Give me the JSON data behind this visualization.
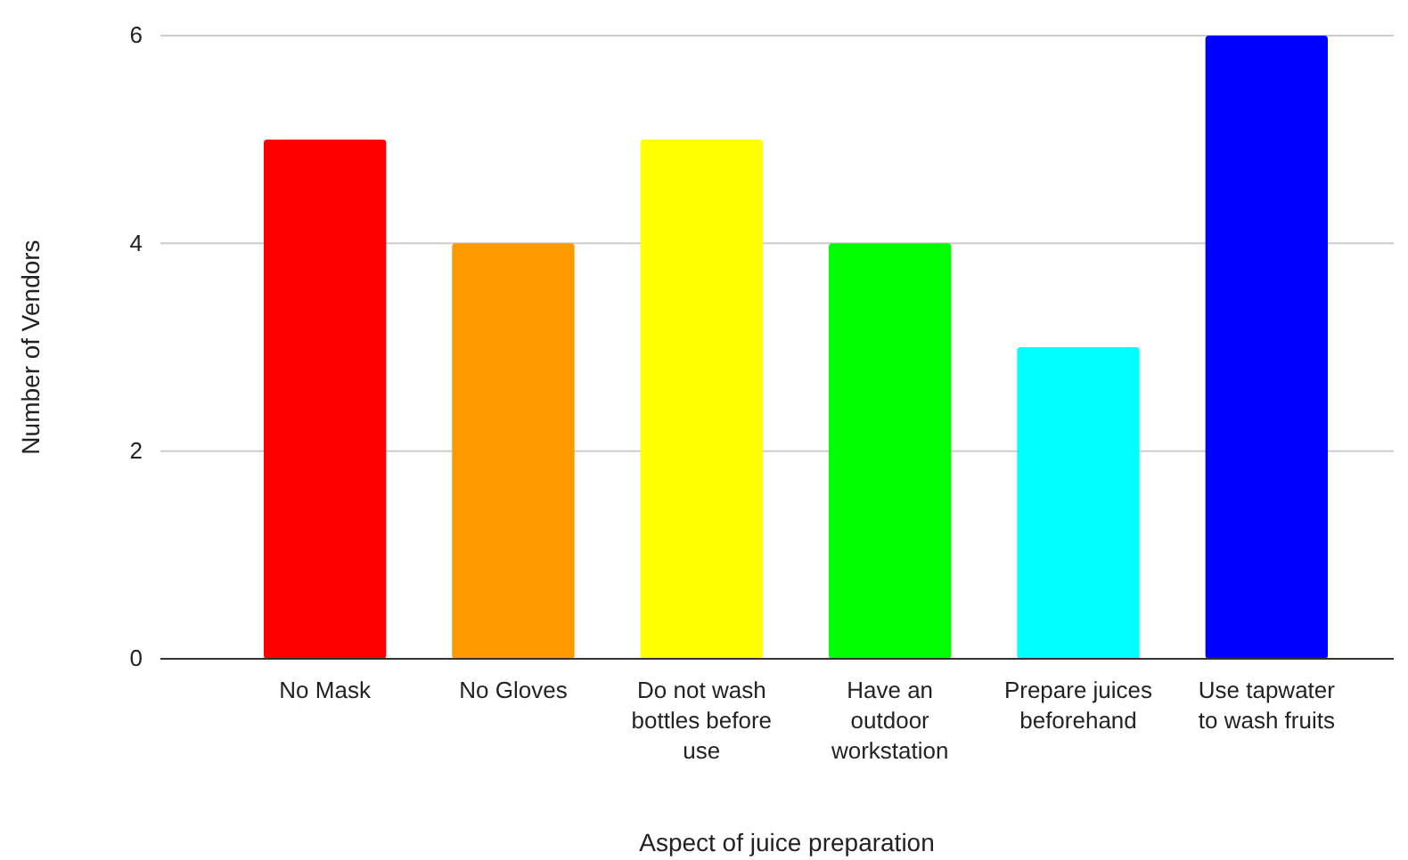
{
  "chart_data": {
    "type": "bar",
    "xlabel": "Aspect of juice preparation",
    "ylabel": "Number of Vendors",
    "categories": [
      "No Mask",
      "No Gloves",
      "Do not wash bottles before use",
      "Have an outdoor workstation",
      "Prepare juices beforehand",
      "Use tapwater to wash fruits"
    ],
    "values": [
      5,
      4,
      5,
      4,
      3,
      6
    ],
    "colors": [
      "#ff0000",
      "#ff9900",
      "#ffff00",
      "#00ff00",
      "#00ffff",
      "#0000ff"
    ],
    "ylim": [
      0,
      6
    ],
    "yticks": [
      0,
      2,
      4,
      6
    ],
    "grid": "y"
  }
}
